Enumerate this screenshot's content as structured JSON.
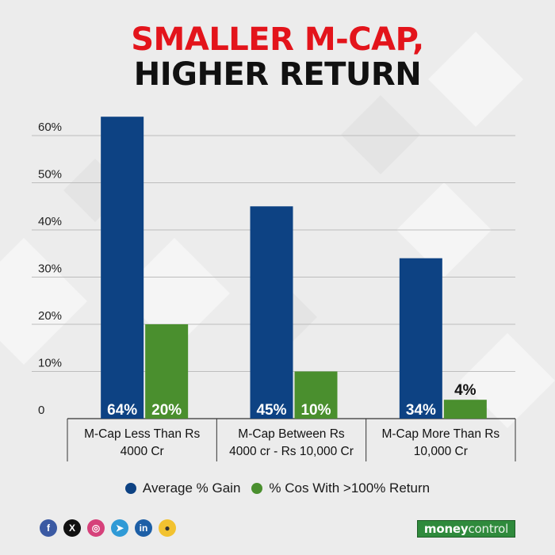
{
  "title": {
    "line1": "SMALLER M-CAP,",
    "line2": "HIGHER RETURN"
  },
  "colors": {
    "title_red": "#e3141b",
    "title_black": "#111111",
    "avg": "#0d4283",
    "cos": "#4a8f2e",
    "grid": "#bdbdbd"
  },
  "chart_data": {
    "type": "bar",
    "title": "SMALLER M-CAP, HIGHER RETURN",
    "categories": [
      [
        "M-Cap Less Than Rs",
        "4000 Cr"
      ],
      [
        "M-Cap Between Rs",
        "4000 cr - Rs 10,000 Cr"
      ],
      [
        "M-Cap More Than Rs",
        "10,000 Cr"
      ]
    ],
    "series": [
      {
        "name": "Average % Gain",
        "values": [
          64,
          45,
          34
        ],
        "labels": [
          "64%",
          "45%",
          "34%"
        ]
      },
      {
        "name": "% Cos With >100% Return",
        "values": [
          20,
          10,
          4
        ],
        "labels": [
          "20%",
          "10%",
          "4%"
        ]
      }
    ],
    "ylim": [
      0,
      60
    ],
    "yticks": [
      0,
      10,
      20,
      30,
      40,
      50,
      60
    ],
    "ytick_labels": [
      "0",
      "10%",
      "20%",
      "30%",
      "40%",
      "50%",
      "60%"
    ],
    "grid": true,
    "legend": "bottom"
  },
  "footer": {
    "social_icons": [
      "facebook-icon",
      "x-icon",
      "instagram-icon",
      "telegram-icon",
      "linkedin-icon",
      "koo-icon"
    ],
    "social_glyphs": [
      "f",
      "X",
      "◎",
      "➤",
      "in",
      "●"
    ],
    "brand_a": "money",
    "brand_b": "control"
  }
}
